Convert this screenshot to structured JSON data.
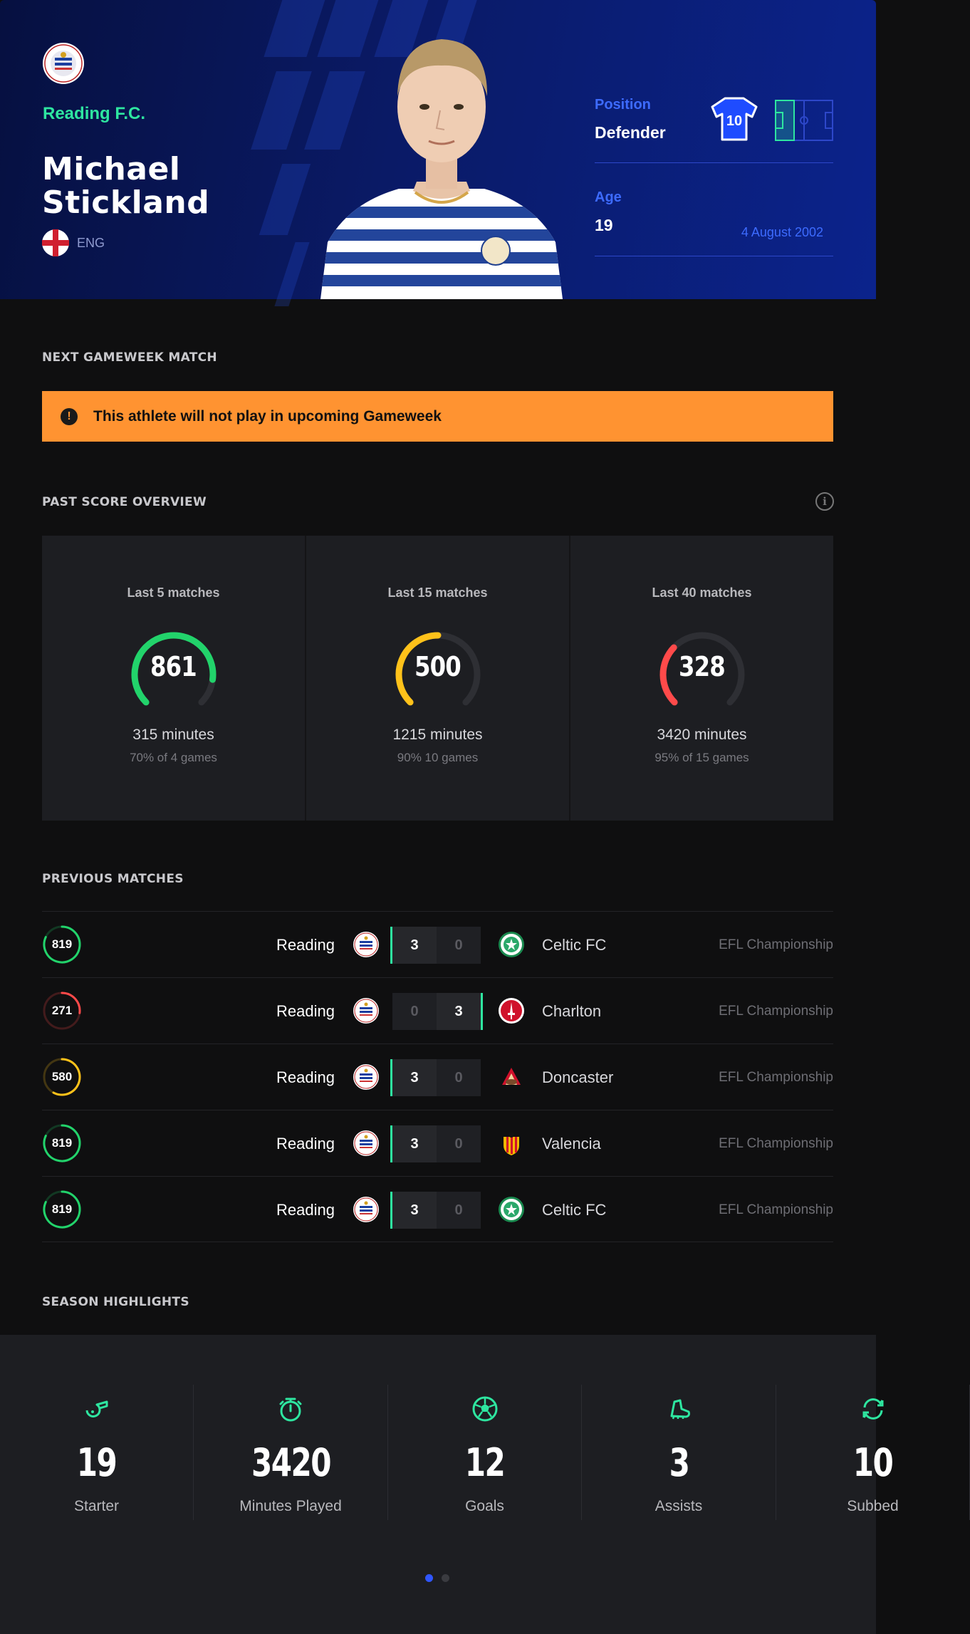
{
  "hero": {
    "club_name": "Reading F.C.",
    "player_first": "Michael",
    "player_last": "Stickland",
    "nation": "ENG",
    "position_label": "Position",
    "position_value": "Defender",
    "shirt_number": "10",
    "age_label": "Age",
    "age_value": "19",
    "birth_date": "4 August 2002",
    "colors": {
      "accent": "#2ee6a0",
      "blue": "#3d6bff",
      "bg": "#0a1a66"
    }
  },
  "next_match": {
    "title": "NEXT GAMEWEEK MATCH",
    "warning": "This athlete will not play in upcoming Gameweek",
    "warning_color": "#ff9331"
  },
  "past_scores": {
    "title": "PAST SCORE OVERVIEW",
    "info_icon": "i",
    "cards": [
      {
        "label": "Last 5 matches",
        "score": "861",
        "fraction": 0.861,
        "color": "#22d36b",
        "minutes": "315 minutes",
        "games": "70% of 4 games"
      },
      {
        "label": "Last 15 matches",
        "score": "500",
        "fraction": 0.5,
        "color": "#ffc21a",
        "minutes": "1215 minutes",
        "games": "90% 10 games"
      },
      {
        "label": "Last 40 matches",
        "score": "328",
        "fraction": 0.328,
        "color": "#ff4a4a",
        "minutes": "3420 minutes",
        "games": "95% of 15 games"
      }
    ]
  },
  "previous_matches": {
    "title": "PREVIOUS MATCHES",
    "rows": [
      {
        "score": "819",
        "fraction": 0.819,
        "color": "#22d36b",
        "home": "Reading",
        "home_goals": "3",
        "away_goals": "0",
        "away": "Celtic FC",
        "away_logo": "celtic",
        "winner": "home",
        "league": "EFL Championship"
      },
      {
        "score": "271",
        "fraction": 0.271,
        "color": "#ff4a4a",
        "home": "Reading",
        "home_goals": "0",
        "away_goals": "3",
        "away": "Charlton",
        "away_logo": "charlton",
        "winner": "away",
        "league": "EFL Championship"
      },
      {
        "score": "580",
        "fraction": 0.58,
        "color": "#ffc21a",
        "home": "Reading",
        "home_goals": "3",
        "away_goals": "0",
        "away": "Doncaster",
        "away_logo": "doncaster",
        "winner": "home",
        "league": "EFL Championship"
      },
      {
        "score": "819",
        "fraction": 0.819,
        "color": "#22d36b",
        "home": "Reading",
        "home_goals": "3",
        "away_goals": "0",
        "away": "Valencia",
        "away_logo": "valencia",
        "winner": "home",
        "league": "EFL Championship"
      },
      {
        "score": "819",
        "fraction": 0.819,
        "color": "#22d36b",
        "home": "Reading",
        "home_goals": "3",
        "away_goals": "0",
        "away": "Celtic FC",
        "away_logo": "celtic",
        "winner": "home",
        "league": "EFL Championship"
      }
    ]
  },
  "season": {
    "title": "SEASON HIGHLIGHTS",
    "items": [
      {
        "icon": "whistle-icon",
        "value": "19",
        "label": "Starter"
      },
      {
        "icon": "stopwatch-icon",
        "value": "3420",
        "label": "Minutes Played"
      },
      {
        "icon": "football-icon",
        "value": "12",
        "label": "Goals"
      },
      {
        "icon": "boot-icon",
        "value": "3",
        "label": "Assists"
      },
      {
        "icon": "substitution-icon",
        "value": "10",
        "label": "Subbed"
      }
    ],
    "carousel_page": 1,
    "carousel_pages": 2
  }
}
